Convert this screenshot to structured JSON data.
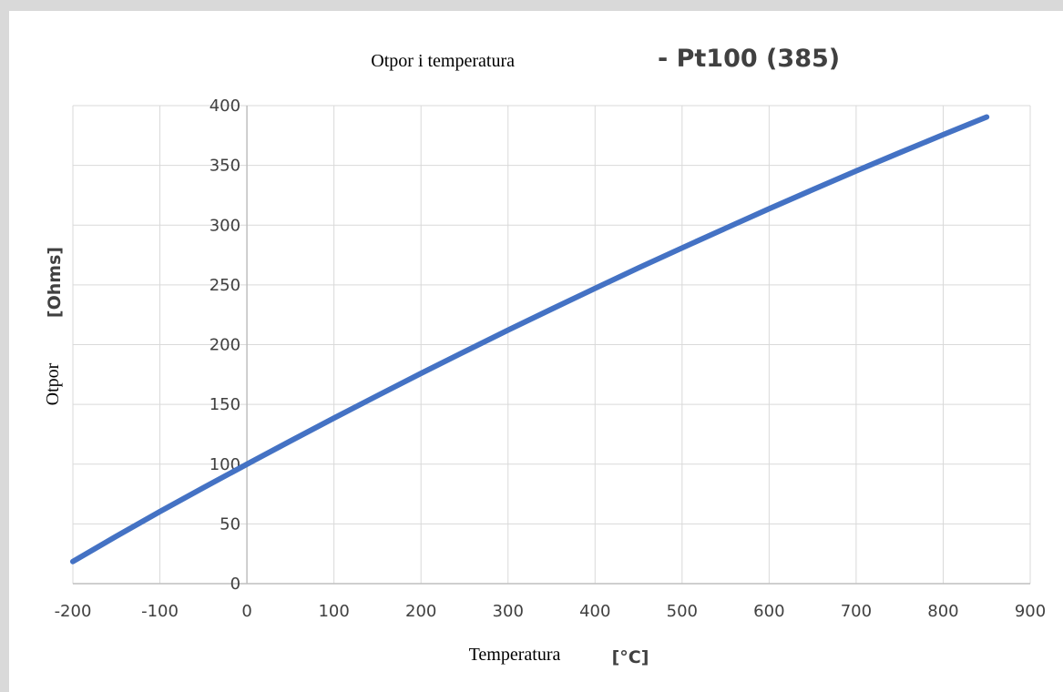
{
  "chart_data": {
    "type": "line",
    "title": "Otpor i temperatura",
    "subtitle": "- Pt100 (385)",
    "xlabel": "Temperatura",
    "xlabel_unit": "[°C]",
    "ylabel": "Otpor",
    "ylabel_unit": "[Ohms]",
    "xlim": [
      -200,
      900
    ],
    "ylim": [
      0,
      400
    ],
    "xticks": [
      -200,
      -100,
      0,
      100,
      200,
      300,
      400,
      500,
      600,
      700,
      800,
      900
    ],
    "yticks": [
      0,
      50,
      100,
      150,
      200,
      250,
      300,
      350,
      400
    ],
    "grid": true,
    "legend": "none",
    "colors": {
      "line": "#4472c4",
      "grid": "#d9d9d9",
      "axis": "#bfbfbf",
      "frame": "#d9d9d9"
    },
    "series": [
      {
        "x": [
          -200,
          -150,
          -100,
          -50,
          0,
          50,
          100,
          150,
          200,
          250,
          300,
          350,
          400,
          450,
          500,
          550,
          600,
          650,
          700,
          750,
          800,
          850
        ],
        "y": [
          18.5,
          39.7,
          60.3,
          80.3,
          100.0,
          119.4,
          138.5,
          157.3,
          175.9,
          194.1,
          212.1,
          229.7,
          247.1,
          264.2,
          280.9,
          297.4,
          313.7,
          329.6,
          345.3,
          360.6,
          375.7,
          390.5
        ]
      }
    ]
  }
}
